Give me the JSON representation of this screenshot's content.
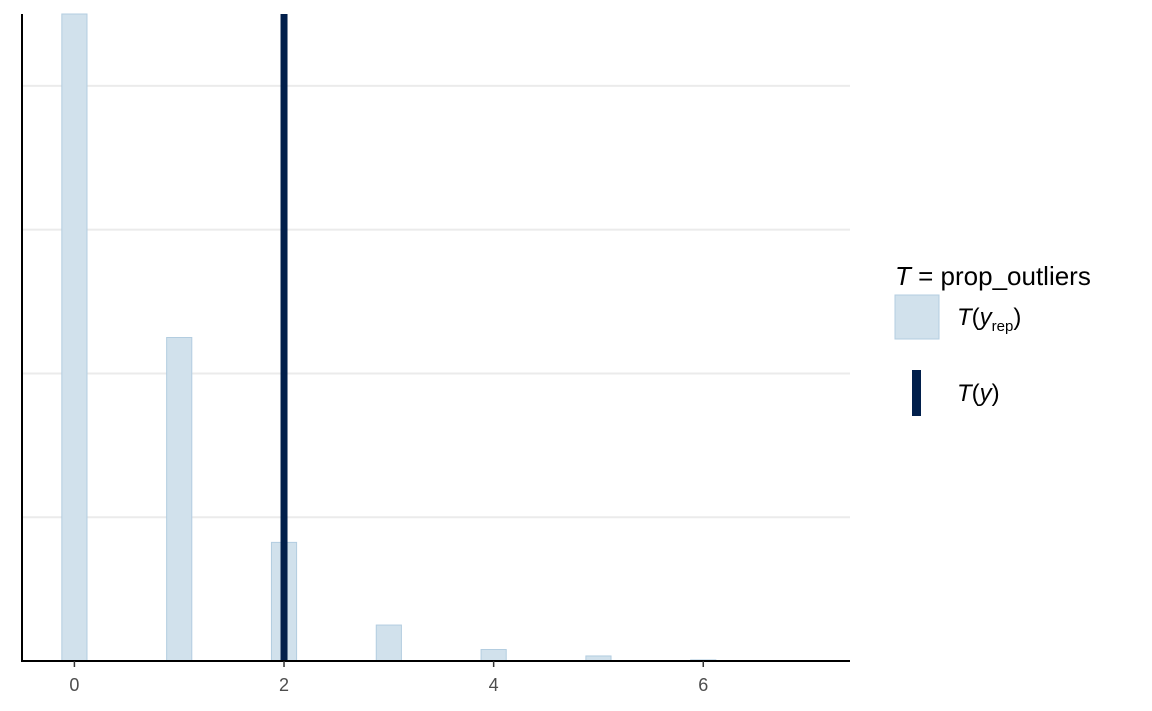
{
  "chart_data": {
    "type": "bar",
    "subtype": "histogram",
    "x_ticks": [
      0,
      2,
      4,
      6
    ],
    "xlim": [
      -0.5,
      7.4
    ],
    "ylim": [
      0,
      1800
    ],
    "y_gridlines": [
      400,
      800,
      1200,
      1600
    ],
    "y_tick_labels_shown": false,
    "grid": "horizontal",
    "bins": [
      {
        "x": 0,
        "count": 1800
      },
      {
        "x": 1,
        "count": 900
      },
      {
        "x": 2,
        "count": 330
      },
      {
        "x": 3,
        "count": 100
      },
      {
        "x": 4,
        "count": 32
      },
      {
        "x": 5,
        "count": 14
      },
      {
        "x": 6,
        "count": 3
      }
    ],
    "observed_value": 2,
    "legend": {
      "placement": "right",
      "title_var": "T",
      "title_eq": " = ",
      "title_name": "prop_outliers",
      "rep_T": "T",
      "rep_y": "y",
      "rep_sub": "rep",
      "obs_T": "T",
      "obs_y": "y"
    },
    "colors": {
      "bar_fill": "#d1e1ec",
      "bar_stroke": "#b3cde0",
      "observed_line": "#011f4b",
      "grid": "#ebebeb",
      "axis": "#000000"
    }
  }
}
